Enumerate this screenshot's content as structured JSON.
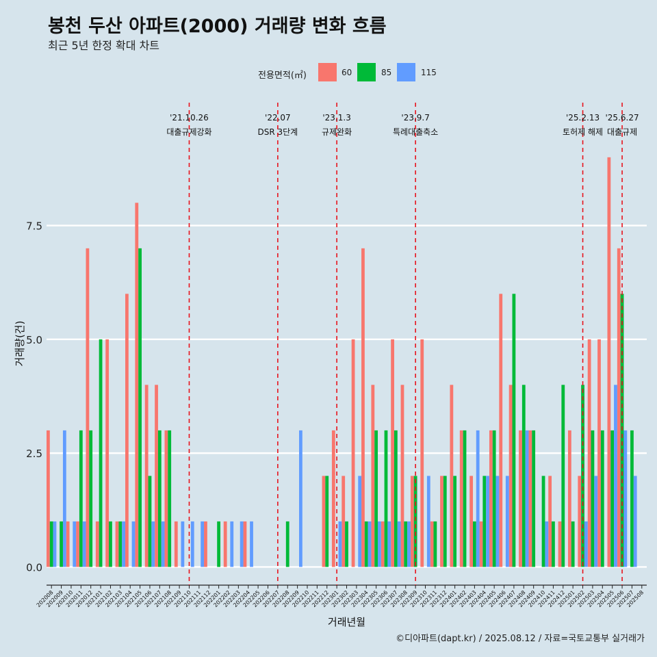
{
  "title": "봉천 두산 아파트(2000) 거래량 변화 흐름",
  "subtitle": "최근 5년 한정 확대 차트",
  "caption": "©디아파트(dapt.kr) / 2025.08.12 / 자료=국토교통부 실거래가",
  "legend": {
    "title": "전용면적(㎡)",
    "items": [
      {
        "label": "60",
        "color": "#f8766d"
      },
      {
        "label": "85",
        "color": "#00ba38"
      },
      {
        "label": "115",
        "color": "#619cff"
      }
    ]
  },
  "chart_data": {
    "type": "bar",
    "title": "봉천 두산 아파트(2000) 거래량 변화 흐름",
    "subtitle": "최근 5년 한정 확대 차트",
    "xlabel": "거래년월",
    "ylabel": "거래량(건)",
    "ylim": [
      -0.4,
      10.2
    ],
    "yticks": [
      0.0,
      2.5,
      5.0,
      7.5
    ],
    "ytick_labels": [
      "0.0",
      "2.5",
      "5.0",
      "7.5"
    ],
    "grid": true,
    "legend_position": "top",
    "categories": [
      "202008",
      "202009",
      "202010",
      "202011",
      "202012",
      "202101",
      "202102",
      "202103",
      "202104",
      "202105",
      "202106",
      "202107",
      "202108",
      "202109",
      "202110",
      "202111",
      "202112",
      "202201",
      "202202",
      "202203",
      "202204",
      "202205",
      "202206",
      "202207",
      "202208",
      "202209",
      "202210",
      "202211",
      "202212",
      "202301",
      "202302",
      "202303",
      "202304",
      "202305",
      "202306",
      "202307",
      "202308",
      "202309",
      "202310",
      "202311",
      "202312",
      "202401",
      "202402",
      "202403",
      "202404",
      "202405",
      "202406",
      "202407",
      "202408",
      "202409",
      "202410",
      "202411",
      "202412",
      "202501",
      "202502",
      "202503",
      "202504",
      "202505",
      "202506",
      "202507",
      "202508"
    ],
    "series": [
      {
        "name": "60",
        "color": "#f8766d",
        "values": [
          3,
          0,
          1,
          1,
          7,
          1,
          5,
          1,
          6,
          8,
          4,
          4,
          3,
          1,
          0,
          0,
          1,
          0,
          1,
          0,
          1,
          0,
          0,
          0,
          0,
          0,
          0,
          0,
          2,
          3,
          2,
          5,
          7,
          4,
          1,
          5,
          4,
          2,
          5,
          1,
          2,
          4,
          3,
          2,
          1,
          3,
          6,
          4,
          3,
          3,
          0,
          2,
          1,
          3,
          2,
          5,
          5,
          9,
          7,
          0,
          0
        ]
      },
      {
        "name": "85",
        "color": "#00ba38",
        "values": [
          1,
          1,
          0,
          3,
          3,
          5,
          1,
          1,
          0,
          7,
          2,
          3,
          3,
          0,
          0,
          0,
          0,
          1,
          0,
          0,
          0,
          0,
          0,
          0,
          1,
          0,
          0,
          0,
          2,
          0,
          1,
          0,
          1,
          3,
          3,
          3,
          1,
          2,
          0,
          1,
          2,
          2,
          3,
          1,
          2,
          3,
          0,
          6,
          4,
          3,
          2,
          1,
          4,
          1,
          4,
          3,
          3,
          3,
          6,
          3,
          0
        ]
      },
      {
        "name": "115",
        "color": "#619cff",
        "values": [
          1,
          3,
          1,
          1,
          0,
          0,
          0,
          1,
          1,
          0,
          1,
          1,
          0,
          1,
          1,
          1,
          0,
          0,
          1,
          1,
          1,
          0,
          0,
          0,
          0,
          3,
          0,
          0,
          0,
          1,
          0,
          2,
          1,
          1,
          1,
          1,
          1,
          0,
          2,
          0,
          0,
          0,
          0,
          3,
          2,
          2,
          2,
          0,
          3,
          0,
          1,
          0,
          0,
          0,
          1,
          2,
          0,
          4,
          3,
          2,
          0
        ]
      }
    ],
    "annotations": [
      {
        "x": "202110",
        "date": "'21.10.26",
        "label": "대출규제강화"
      },
      {
        "x": "202207",
        "date": "'22.07",
        "label": "DSR 3단계"
      },
      {
        "x": "202301",
        "date": "'23.1.3",
        "label": "규제완화"
      },
      {
        "x": "202309",
        "date": "'23.9.7",
        "label": "특례대출축소"
      },
      {
        "x": "202502",
        "date": "'25.2.13",
        "label": "토허제 해제"
      },
      {
        "x": "202506",
        "date": "'25.6.27",
        "label": "대출규제"
      }
    ]
  }
}
